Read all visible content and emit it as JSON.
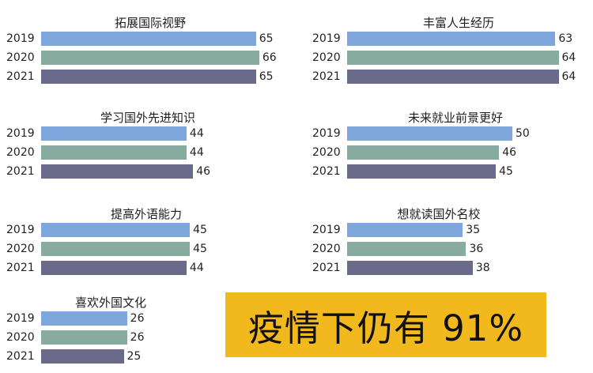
{
  "chart_data": {
    "type": "bar",
    "orientation": "horizontal",
    "categories": [
      "2019",
      "2020",
      "2021"
    ],
    "colors": {
      "2019": "#7ea6dc",
      "2020": "#88ab9f",
      "2021": "#6a6a8a"
    },
    "panels": [
      {
        "title": "拓展国际视野",
        "values": [
          65,
          66,
          65
        ]
      },
      {
        "title": "丰富人生经历",
        "values": [
          63,
          64,
          64
        ]
      },
      {
        "title": "学习国外先进知识",
        "values": [
          44,
          44,
          46
        ]
      },
      {
        "title": "未来就业前景更好",
        "values": [
          50,
          46,
          45
        ]
      },
      {
        "title": "提高外语能力",
        "values": [
          45,
          45,
          44
        ]
      },
      {
        "title": "想就读国外名校",
        "values": [
          35,
          36,
          38
        ]
      },
      {
        "title": "喜欢外国文化",
        "values": [
          26,
          26,
          25
        ]
      }
    ]
  },
  "banner": {
    "text": "疫情下仍有 91%",
    "color": "#f2b91e"
  }
}
